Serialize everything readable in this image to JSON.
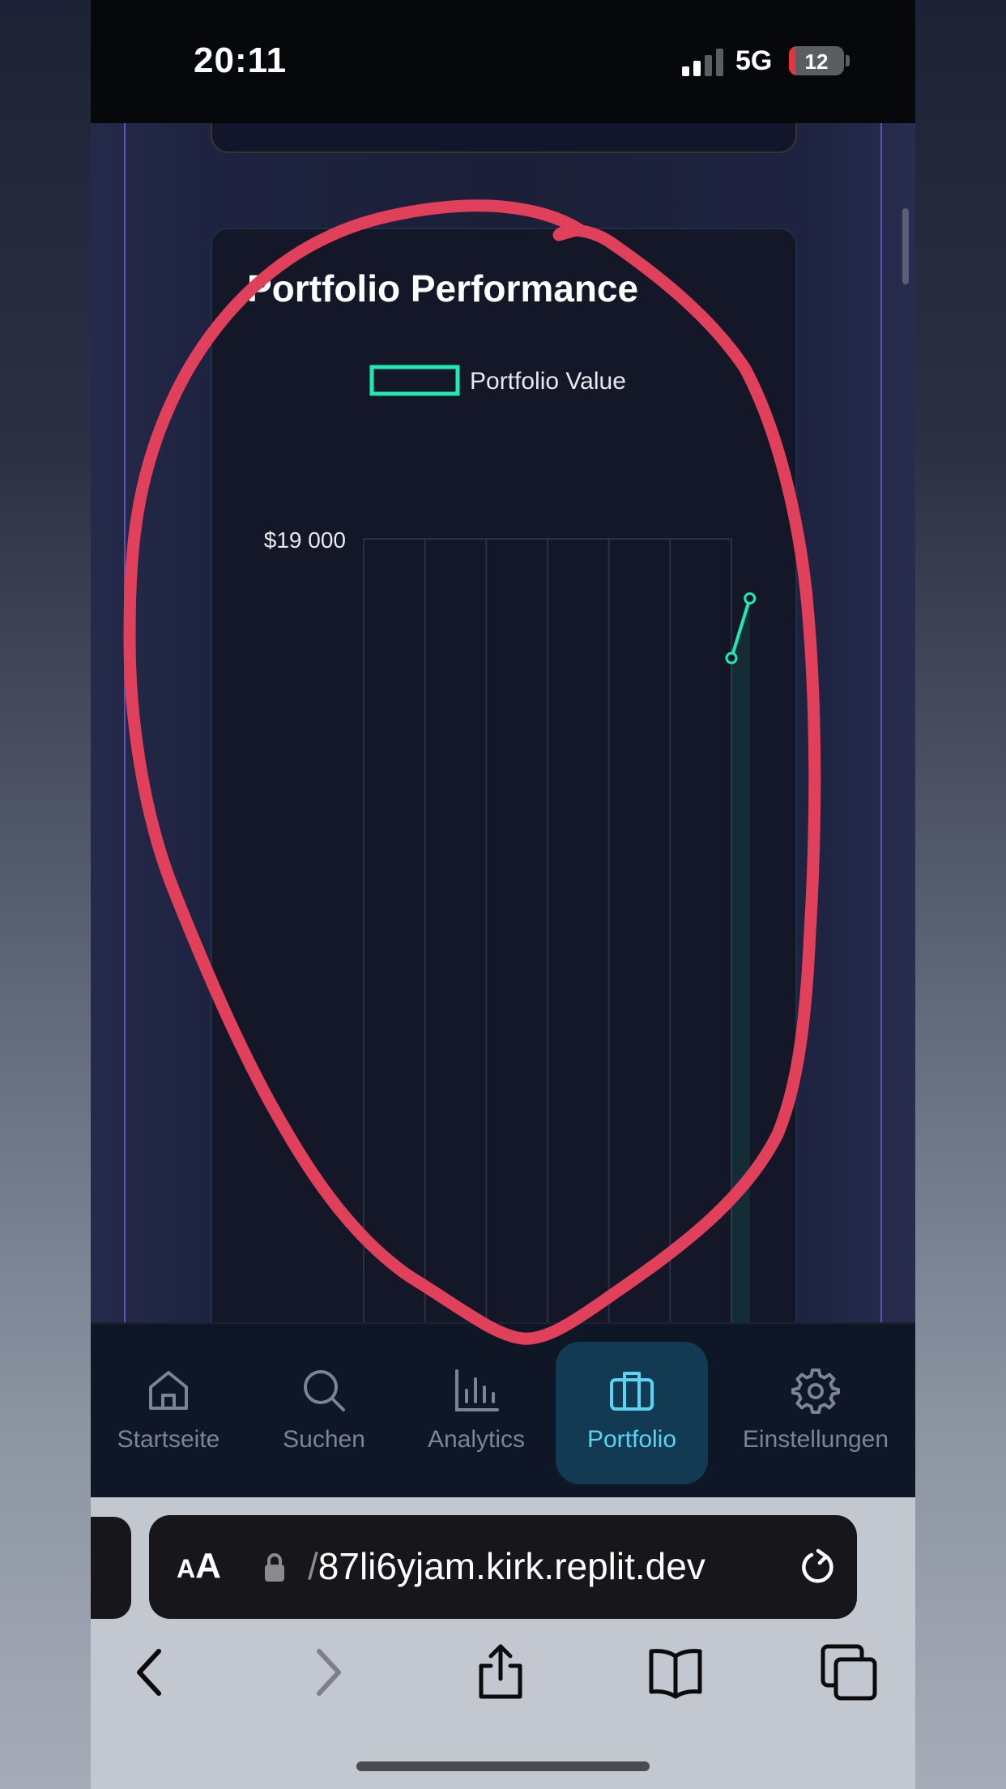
{
  "status_bar": {
    "time": "20:11",
    "network": "5G",
    "battery": "12",
    "battery_level_percent": 12,
    "signal_bars_active": 2,
    "signal_bars_total": 4
  },
  "card": {
    "title": "Portfolio Performance"
  },
  "chart_data": {
    "type": "line",
    "title": "Portfolio Performance",
    "series": [
      {
        "name": "Portfolio Value",
        "color": "#1fe9b6",
        "points": [
          {
            "x": 6,
            "y": 17000
          },
          {
            "x": 6.3,
            "y": 18000
          }
        ]
      }
    ],
    "y_tick_labels": [
      "$19 000"
    ],
    "ylim": [
      0,
      19000
    ],
    "x_gridlines": 6,
    "legend_position": "top-center",
    "grid": true
  },
  "tab_bar": {
    "tabs": [
      {
        "label": "Startseite",
        "icon": "home-icon",
        "active": false
      },
      {
        "label": "Suchen",
        "icon": "search-icon",
        "active": false
      },
      {
        "label": "Analytics",
        "icon": "bar-chart-icon",
        "active": false
      },
      {
        "label": "Portfolio",
        "icon": "briefcase-icon",
        "active": true
      },
      {
        "label": "Einstellungen",
        "icon": "gear-icon",
        "active": false
      }
    ]
  },
  "browser": {
    "aa_small": "A",
    "aa_big": "A",
    "url_prefix": "/",
    "url": "87li6yjam.kirk.replit.dev",
    "nav_icons": [
      "back-icon",
      "forward-icon",
      "share-icon",
      "bookmarks-icon",
      "tabs-icon"
    ]
  },
  "colors": {
    "accent": "#1fe9b6",
    "active_tab": "#5ad4f2",
    "annotation": "#e0405a"
  }
}
